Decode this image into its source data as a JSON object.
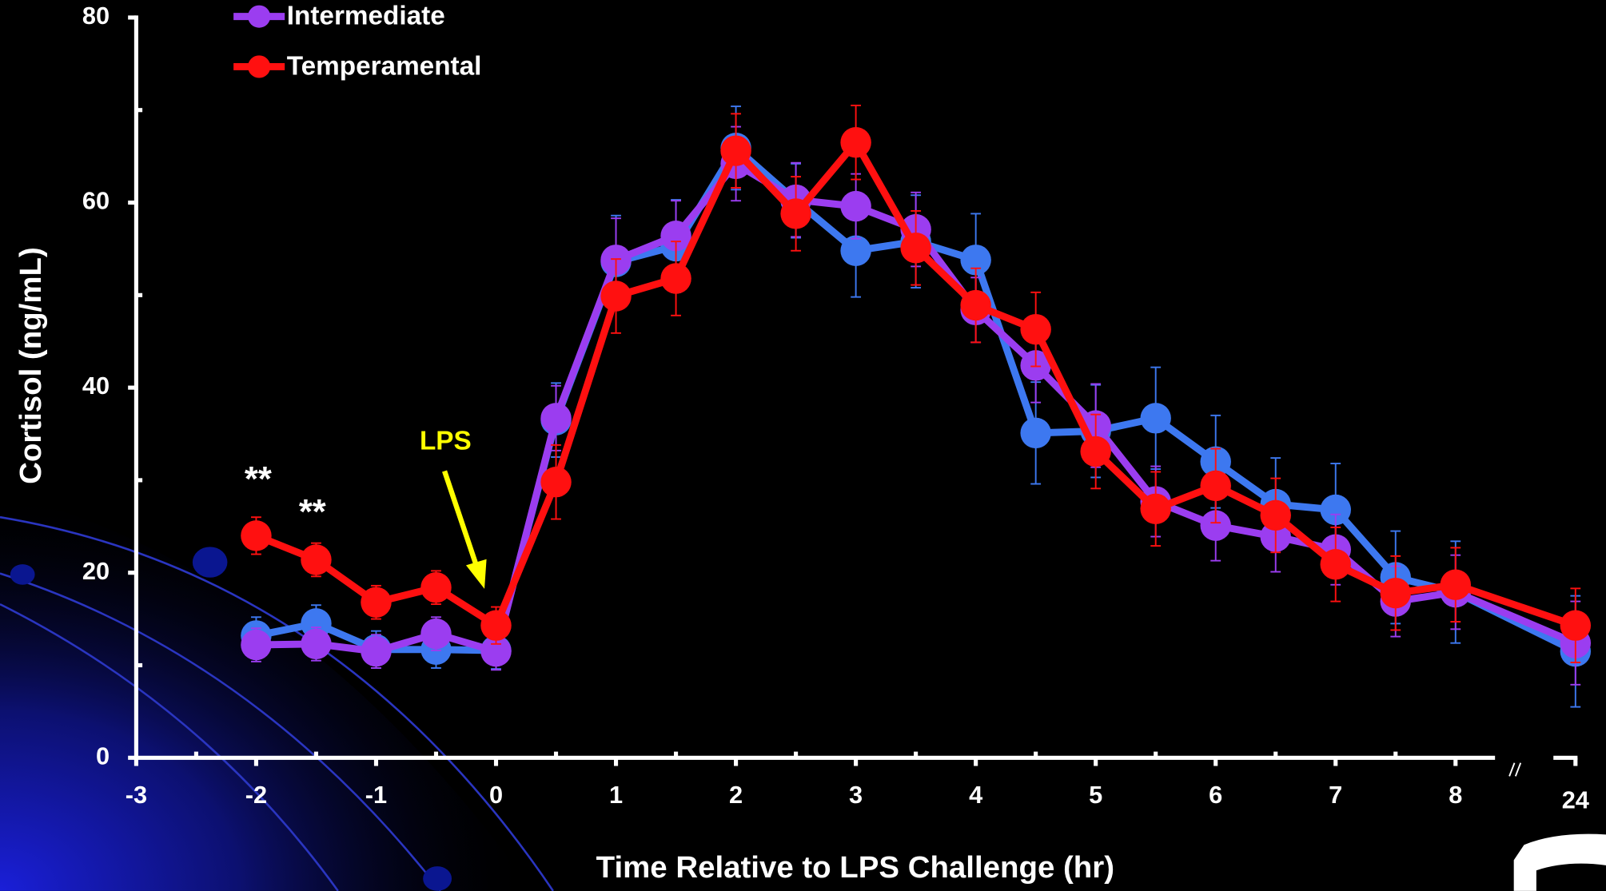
{
  "chart_data": {
    "type": "line",
    "xlabel": "Time Relative to LPS Challenge (hr)",
    "ylabel": "Cortisol (ng/mL)",
    "x": [
      -2,
      -1.5,
      -1,
      -0.5,
      0,
      0.5,
      1,
      1.5,
      2,
      2.5,
      3,
      3.5,
      4,
      4.5,
      5,
      5.5,
      6,
      6.5,
      7,
      7.5,
      8,
      24
    ],
    "xlim": [
      -3,
      24
    ],
    "xbreak": [
      8,
      23
    ],
    "xticks": [
      -3,
      -2,
      -1,
      0,
      1,
      2,
      3,
      4,
      5,
      6,
      7,
      8,
      24
    ],
    "xminorticks": [
      -2.5,
      -1.5,
      -0.5,
      0.5,
      1.5,
      2.5,
      3.5,
      4.5,
      5.5,
      6.5,
      7.5
    ],
    "ylim": [
      0,
      80
    ],
    "yticks": [
      0,
      20,
      40,
      60,
      80
    ],
    "yminorticks": [
      10,
      30,
      50,
      70
    ],
    "series": [
      {
        "color": "#3d78f0",
        "values": [
          13.2,
          14.5,
          11.7,
          11.7,
          11.6,
          36.5,
          53.6,
          55.3,
          65.9,
          60.2,
          54.8,
          55.8,
          53.8,
          35.1,
          35.3,
          36.7,
          32.0,
          27.4,
          26.8,
          19.5,
          17.9,
          11.5
        ],
        "errors": [
          2,
          2,
          2,
          2,
          2,
          4,
          5,
          5,
          4.5,
          4,
          5,
          5,
          5,
          5.5,
          5,
          5.5,
          5,
          5,
          5,
          5,
          5.5,
          6
        ]
      },
      {
        "name": "Intermediate",
        "color": "#9b3df0",
        "values": [
          12.2,
          12.3,
          11.5,
          13.4,
          11.5,
          36.7,
          53.8,
          56.4,
          64.2,
          60.3,
          59.6,
          57.1,
          48.4,
          42.4,
          35.9,
          27.7,
          25.1,
          23.9,
          22.5,
          16.9,
          17.9,
          12.4
        ],
        "errors": [
          1.8,
          1.8,
          1.8,
          1.8,
          2,
          3.5,
          4.5,
          3.8,
          4,
          4,
          3.5,
          4,
          3.5,
          4,
          4.5,
          3.8,
          3.8,
          3.8,
          3.8,
          3.8,
          4,
          4.5
        ]
      },
      {
        "name": "Temperamental",
        "color": "#ff1010",
        "values": [
          24.0,
          21.4,
          16.8,
          18.4,
          14.3,
          29.8,
          49.9,
          51.8,
          65.6,
          58.8,
          66.5,
          55.1,
          48.9,
          46.3,
          33.1,
          26.9,
          29.4,
          26.2,
          20.9,
          17.8,
          18.7,
          14.3
        ],
        "errors": [
          2,
          1.8,
          1.8,
          1.8,
          2,
          4,
          4,
          4,
          4,
          4,
          4,
          4,
          4,
          4,
          4,
          4,
          4,
          4,
          4,
          4,
          4,
          4
        ]
      }
    ],
    "annotations": [
      "**",
      "**",
      "LPS"
    ]
  }
}
